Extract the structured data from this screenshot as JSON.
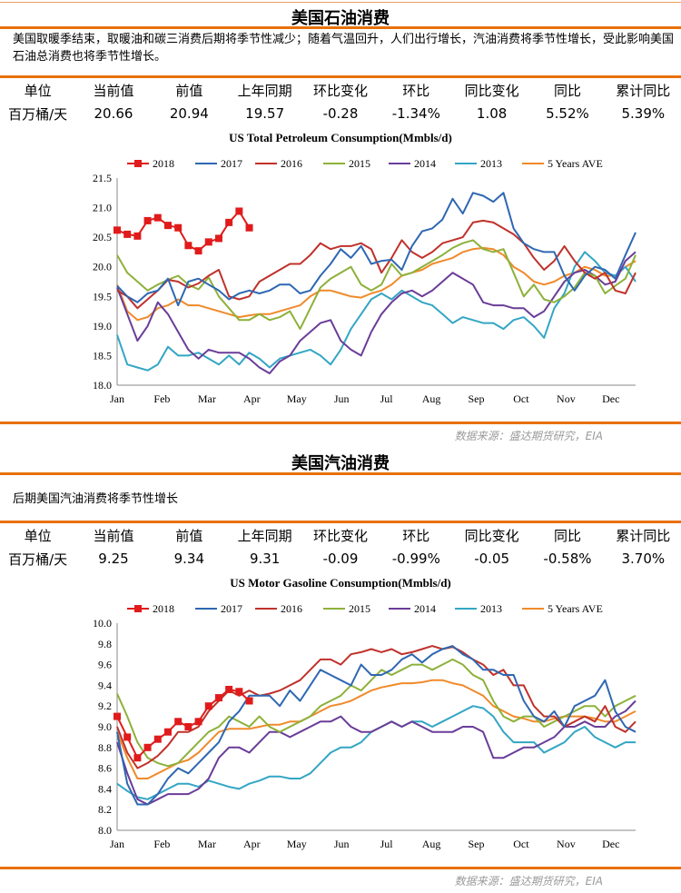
{
  "colors": {
    "s2018": "#e01b1b",
    "s2017": "#2e67b2",
    "s2016": "#c0312b",
    "s2015": "#8db13a",
    "s2014": "#6a3d98",
    "s2013": "#33a6c4",
    "avg5": "#f08a2a",
    "rule": "#e8710a"
  },
  "sections": [
    {
      "title": "美国石油消费",
      "description": "美国取暖季结束，取暖油和碳三消费后期将季节性减少；随着气温回升，人们出行增长，汽油消费将季节性增长，受此影响美国石油总消费也将季节性增长。",
      "headers": [
        "单位",
        "当前值",
        "前值",
        "上年同期",
        "环比变化",
        "环比",
        "同比变化",
        "同比",
        "累计同比"
      ],
      "values": [
        "百万桶/天",
        "20.66",
        "20.94",
        "19.57",
        "-0.28",
        "-1.34%",
        "1.08",
        "5.52%",
        "5.39%"
      ],
      "source": "数据来源：盛达期货研究，EIA"
    },
    {
      "title": "美国汽油消费",
      "description": "后期美国汽油消费将季节性增长",
      "headers": [
        "单位",
        "当前值",
        "前值",
        "上年同期",
        "环比变化",
        "环比",
        "同比变化",
        "同比",
        "累计同比"
      ],
      "values": [
        "百万桶/天",
        "9.25",
        "9.34",
        "9.31",
        "-0.09",
        "-0.99%",
        "-0.05",
        "-0.58%",
        "3.70%"
      ],
      "source": "数据来源：盛达期货研究，EIA"
    }
  ],
  "chart_data": [
    {
      "type": "line",
      "title": "US Total Petroleum Consumption(Mmbls/d)",
      "x_unit": "week of year (1-52)",
      "x_ticks": [
        "Jan",
        "Feb",
        "Mar",
        "Apr",
        "May",
        "Jun",
        "Jul",
        "Aug",
        "Sep",
        "Oct",
        "Nov",
        "Dec"
      ],
      "ylim": [
        18.0,
        21.5
      ],
      "y_ticks": [
        18.0,
        18.5,
        19.0,
        19.5,
        20.0,
        20.5,
        21.0,
        21.5
      ],
      "legend": "top",
      "series": [
        {
          "name": "2018",
          "color_key": "s2018",
          "marker": "square",
          "values": [
            20.62,
            20.55,
            20.52,
            20.78,
            20.83,
            20.7,
            20.66,
            20.36,
            20.27,
            20.42,
            20.48,
            20.75,
            20.94,
            20.66
          ]
        },
        {
          "name": "2017",
          "color_key": "s2017",
          "values": [
            19.68,
            19.5,
            19.4,
            19.55,
            19.6,
            19.8,
            19.35,
            19.75,
            19.8,
            19.7,
            19.6,
            19.45,
            19.55,
            19.6,
            19.55,
            19.6,
            19.7,
            19.7,
            19.55,
            19.6,
            19.85,
            20.05,
            20.3,
            20.15,
            20.35,
            20.05,
            20.1,
            20.12,
            19.95,
            20.35,
            20.6,
            20.65,
            20.8,
            21.15,
            20.9,
            21.25,
            21.2,
            21.1,
            21.25,
            20.65,
            20.4,
            20.3,
            20.25,
            20.25,
            19.85,
            19.6,
            19.85,
            20.0,
            19.95,
            19.8,
            20.2,
            20.58
          ]
        },
        {
          "name": "2016",
          "color_key": "s2016",
          "values": [
            19.6,
            19.5,
            19.3,
            19.45,
            19.6,
            19.78,
            19.75,
            19.65,
            19.72,
            19.85,
            19.95,
            19.5,
            19.45,
            19.5,
            19.75,
            19.85,
            19.95,
            20.05,
            20.05,
            20.2,
            20.4,
            20.3,
            20.35,
            20.35,
            20.4,
            20.3,
            19.9,
            20.15,
            20.45,
            20.25,
            20.15,
            20.25,
            20.4,
            20.45,
            20.5,
            20.75,
            20.78,
            20.75,
            20.65,
            20.55,
            20.4,
            20.15,
            19.95,
            20.1,
            20.35,
            20.1,
            19.9,
            19.8,
            19.9,
            19.6,
            19.55,
            19.9
          ]
        },
        {
          "name": "2015",
          "color_key": "s2015",
          "values": [
            20.2,
            19.9,
            19.75,
            19.6,
            19.7,
            19.78,
            19.85,
            19.7,
            19.62,
            19.82,
            19.5,
            19.3,
            19.1,
            19.1,
            19.2,
            19.1,
            19.15,
            19.25,
            18.95,
            19.3,
            19.65,
            19.8,
            19.9,
            20.0,
            19.7,
            19.6,
            19.7,
            20.05,
            19.85,
            19.9,
            20.0,
            20.1,
            20.2,
            20.32,
            20.4,
            20.45,
            20.3,
            20.25,
            20.3,
            19.9,
            19.5,
            19.7,
            19.45,
            19.4,
            19.5,
            19.65,
            19.9,
            19.85,
            19.55,
            19.68,
            19.8,
            20.2
          ]
        },
        {
          "name": "2014",
          "color_key": "s2014",
          "values": [
            19.65,
            19.2,
            18.75,
            19.0,
            19.4,
            19.2,
            18.9,
            18.6,
            18.45,
            18.6,
            18.55,
            18.55,
            18.55,
            18.45,
            18.3,
            18.2,
            18.4,
            18.5,
            18.75,
            18.9,
            19.05,
            19.1,
            18.75,
            18.6,
            18.5,
            18.9,
            19.2,
            19.4,
            19.55,
            19.6,
            19.5,
            19.6,
            19.75,
            19.9,
            19.8,
            19.7,
            19.4,
            19.35,
            19.35,
            19.3,
            19.3,
            19.15,
            19.25,
            19.5,
            19.75,
            19.9,
            19.95,
            19.85,
            19.7,
            19.75,
            20.1,
            20.25
          ]
        },
        {
          "name": "2013",
          "color_key": "s2013",
          "values": [
            18.85,
            18.35,
            18.3,
            18.25,
            18.35,
            18.65,
            18.5,
            18.5,
            18.55,
            18.45,
            18.35,
            18.5,
            18.35,
            18.55,
            18.45,
            18.3,
            18.45,
            18.5,
            18.55,
            18.6,
            18.5,
            18.35,
            18.6,
            18.95,
            19.2,
            19.45,
            19.55,
            19.45,
            19.6,
            19.5,
            19.4,
            19.35,
            19.2,
            19.05,
            19.15,
            19.1,
            19.05,
            19.05,
            18.95,
            19.1,
            19.15,
            19.0,
            18.8,
            19.3,
            19.55,
            20.0,
            20.25,
            20.1,
            19.9,
            19.85,
            20.0,
            19.75
          ]
        },
        {
          "name": "5 Years AVE",
          "color_key": "avg5",
          "values": [
            19.7,
            19.25,
            19.1,
            19.15,
            19.3,
            19.35,
            19.45,
            19.35,
            19.35,
            19.3,
            19.25,
            19.2,
            19.15,
            19.18,
            19.2,
            19.2,
            19.25,
            19.3,
            19.35,
            19.5,
            19.6,
            19.6,
            19.55,
            19.5,
            19.48,
            19.55,
            19.6,
            19.7,
            19.85,
            19.9,
            19.95,
            20.05,
            20.1,
            20.15,
            20.25,
            20.3,
            20.32,
            20.3,
            20.2,
            20.0,
            19.9,
            19.75,
            19.7,
            19.75,
            19.85,
            19.9,
            20.0,
            19.95,
            19.85,
            19.85,
            20.0,
            20.1
          ]
        }
      ]
    },
    {
      "type": "line",
      "title": "US Motor Gasoline Consumption(Mmbls/d)",
      "x_unit": "week of year (1-52)",
      "x_ticks": [
        "Jan",
        "Feb",
        "Mar",
        "Apr",
        "May",
        "Jun",
        "Jul",
        "Aug",
        "Sep",
        "Oct",
        "Nov",
        "Dec"
      ],
      "ylim": [
        8.0,
        10.0
      ],
      "y_ticks": [
        8.0,
        8.2,
        8.4,
        8.6,
        8.8,
        9.0,
        9.2,
        9.4,
        9.6,
        9.8,
        10.0
      ],
      "legend": "top",
      "series": [
        {
          "name": "2018",
          "color_key": "s2018",
          "marker": "square",
          "values": [
            9.1,
            8.9,
            8.7,
            8.8,
            8.88,
            8.95,
            9.05,
            9.0,
            9.05,
            9.2,
            9.28,
            9.36,
            9.34,
            9.25
          ]
        },
        {
          "name": "2017",
          "color_key": "s2017",
          "values": [
            8.95,
            8.45,
            8.25,
            8.25,
            8.35,
            8.5,
            8.6,
            8.55,
            8.65,
            8.75,
            8.85,
            9.05,
            9.15,
            9.3,
            9.3,
            9.3,
            9.2,
            9.35,
            9.25,
            9.4,
            9.55,
            9.5,
            9.45,
            9.4,
            9.6,
            9.5,
            9.5,
            9.55,
            9.65,
            9.7,
            9.62,
            9.7,
            9.75,
            9.78,
            9.7,
            9.65,
            9.55,
            9.55,
            9.5,
            9.5,
            9.25,
            9.1,
            9.05,
            9.15,
            9.0,
            9.2,
            9.25,
            9.3,
            9.45,
            9.15,
            9.0,
            8.95
          ]
        },
        {
          "name": "2016",
          "color_key": "s2016",
          "values": [
            9.0,
            8.75,
            8.6,
            8.65,
            8.72,
            8.82,
            8.95,
            8.95,
            9.0,
            9.15,
            9.25,
            9.35,
            9.3,
            9.35,
            9.3,
            9.32,
            9.35,
            9.4,
            9.45,
            9.55,
            9.65,
            9.65,
            9.6,
            9.7,
            9.72,
            9.75,
            9.72,
            9.75,
            9.7,
            9.72,
            9.75,
            9.78,
            9.75,
            9.77,
            9.72,
            9.65,
            9.6,
            9.5,
            9.55,
            9.4,
            9.4,
            9.2,
            9.1,
            9.1,
            9.0,
            9.05,
            9.1,
            9.05,
            9.2,
            9.0,
            8.95,
            9.05
          ]
        },
        {
          "name": "2015",
          "color_key": "s2015",
          "values": [
            9.32,
            9.1,
            8.85,
            8.7,
            8.65,
            8.62,
            8.65,
            8.75,
            8.85,
            8.95,
            9.0,
            9.1,
            9.05,
            9.0,
            9.1,
            9.0,
            8.95,
            9.0,
            9.05,
            9.1,
            9.2,
            9.25,
            9.3,
            9.4,
            9.35,
            9.45,
            9.55,
            9.5,
            9.55,
            9.6,
            9.6,
            9.55,
            9.6,
            9.65,
            9.6,
            9.5,
            9.45,
            9.25,
            9.1,
            9.05,
            9.1,
            9.1,
            9.0,
            9.05,
            9.1,
            9.15,
            9.2,
            9.2,
            9.1,
            9.2,
            9.25,
            9.3
          ]
        },
        {
          "name": "2014",
          "color_key": "s2014",
          "values": [
            8.85,
            8.55,
            8.3,
            8.25,
            8.3,
            8.35,
            8.35,
            8.35,
            8.4,
            8.5,
            8.7,
            8.8,
            8.8,
            8.75,
            8.85,
            8.95,
            8.95,
            8.9,
            8.95,
            9.0,
            9.05,
            9.05,
            9.1,
            9.0,
            8.95,
            8.95,
            9.0,
            9.05,
            9.0,
            9.05,
            9.0,
            8.95,
            8.95,
            8.95,
            9.0,
            9.0,
            8.95,
            8.7,
            8.7,
            8.75,
            8.8,
            8.8,
            8.85,
            8.9,
            9.0,
            9.0,
            9.05,
            9.0,
            9.0,
            9.1,
            9.15,
            9.25
          ]
        },
        {
          "name": "2013",
          "color_key": "s2013",
          "values": [
            8.45,
            8.38,
            8.32,
            8.3,
            8.35,
            8.4,
            8.45,
            8.45,
            8.42,
            8.48,
            8.45,
            8.42,
            8.4,
            8.45,
            8.48,
            8.52,
            8.52,
            8.5,
            8.5,
            8.55,
            8.65,
            8.75,
            8.8,
            8.8,
            8.85,
            8.95,
            9.0,
            9.05,
            9.0,
            9.05,
            9.05,
            9.0,
            9.05,
            9.1,
            9.15,
            9.2,
            9.18,
            9.1,
            8.95,
            8.85,
            8.85,
            8.85,
            8.75,
            8.8,
            8.85,
            8.95,
            9.0,
            8.9,
            8.85,
            8.8,
            8.85,
            8.85
          ]
        },
        {
          "name": "5 Years AVE",
          "color_key": "avg5",
          "values": [
            8.95,
            8.7,
            8.5,
            8.5,
            8.55,
            8.6,
            8.65,
            8.68,
            8.75,
            8.85,
            8.95,
            8.98,
            8.98,
            8.98,
            9.0,
            9.02,
            9.02,
            9.05,
            9.05,
            9.1,
            9.15,
            9.2,
            9.22,
            9.25,
            9.3,
            9.35,
            9.38,
            9.4,
            9.42,
            9.42,
            9.43,
            9.45,
            9.45,
            9.42,
            9.4,
            9.35,
            9.3,
            9.2,
            9.15,
            9.1,
            9.08,
            9.05,
            9.05,
            9.08,
            9.1,
            9.1,
            9.1,
            9.08,
            9.05,
            9.05,
            9.1,
            9.15
          ]
        }
      ]
    }
  ]
}
